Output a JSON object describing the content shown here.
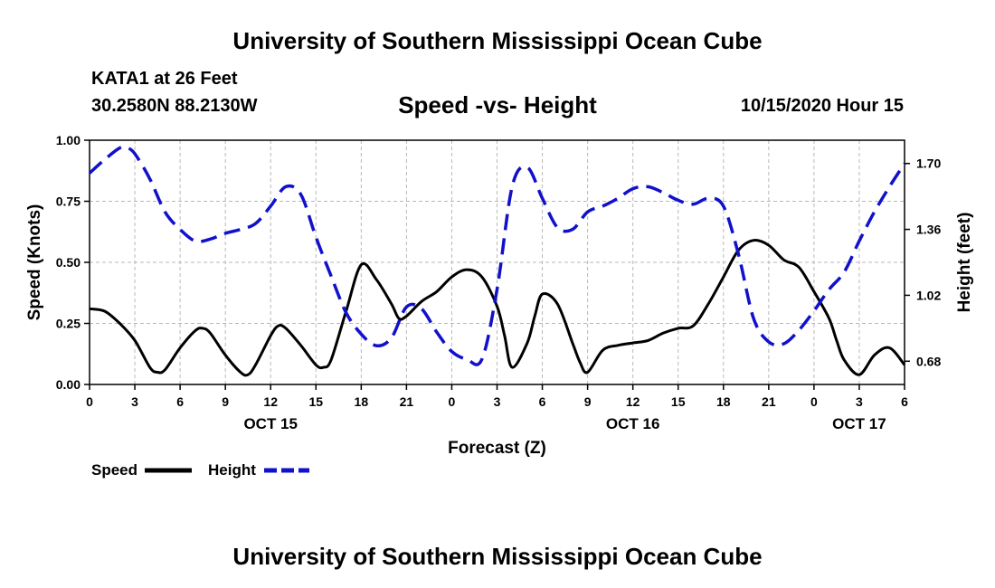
{
  "header": {
    "title": "University of Southern Mississippi Ocean Cube",
    "station": "KATA1 at 26 Feet",
    "coords": "30.2580N 88.2130W",
    "subtitle": "Speed -vs- Height",
    "datetime": "10/15/2020 Hour 15"
  },
  "footer": {
    "title": "University of Southern Mississippi Ocean Cube"
  },
  "chart_data": {
    "type": "line",
    "title": "Speed -vs- Height",
    "xlabel": "Forecast (Z)",
    "ylabel": "Speed (Knots)",
    "y2label": "Height (feet)",
    "xlim": [
      0,
      54
    ],
    "ylim": [
      0,
      1
    ],
    "y2lim": [
      0.56,
      1.82
    ],
    "grid": true,
    "x_ticks": [
      0,
      3,
      6,
      9,
      12,
      15,
      18,
      21,
      24,
      27,
      30,
      33,
      36,
      39,
      42,
      45,
      48,
      51,
      54
    ],
    "x_tick_labels": [
      "0",
      "3",
      "6",
      "9",
      "12",
      "15",
      "18",
      "21",
      "0",
      "3",
      "6",
      "9",
      "12",
      "15",
      "18",
      "21",
      "0",
      "3",
      "6"
    ],
    "day_labels": [
      {
        "x": 12,
        "label": "OCT 15"
      },
      {
        "x": 36,
        "label": "OCT 16"
      },
      {
        "x": 51,
        "label": "OCT 17"
      }
    ],
    "y_ticks": [
      0.0,
      0.25,
      0.5,
      0.75,
      1.0
    ],
    "y_tick_labels": [
      "0.00",
      "0.25",
      "0.50",
      "0.75",
      "1.00"
    ],
    "y2_ticks": [
      0.68,
      1.02,
      1.36,
      1.7
    ],
    "y2_tick_labels": [
      "0.68",
      "1.02",
      "1.36",
      "1.70"
    ],
    "legend": {
      "position": "bottom-left",
      "entries": [
        {
          "label": "Speed",
          "color": "#000000",
          "style": "solid"
        },
        {
          "label": "Height",
          "color": "#1111cc",
          "style": "dashed"
        }
      ]
    },
    "series": [
      {
        "name": "Speed",
        "axis": "left",
        "color": "#000000",
        "style": "solid",
        "x": [
          0,
          1,
          2,
          3,
          4,
          4.5,
          5,
          6,
          7,
          7.5,
          8,
          9,
          10,
          10.5,
          11,
          12,
          12.5,
          13,
          14,
          15,
          15.5,
          16,
          17,
          18,
          19,
          20,
          20.5,
          21,
          22,
          23,
          24,
          25,
          26,
          27,
          27.5,
          28,
          29,
          29.5,
          30,
          31,
          32,
          32.5,
          33,
          34,
          35,
          36,
          37,
          38,
          39,
          40,
          41,
          42,
          43,
          44,
          45,
          46,
          47,
          48,
          49,
          49.5,
          50,
          51,
          52,
          53,
          54
        ],
        "values": [
          0.31,
          0.3,
          0.25,
          0.18,
          0.07,
          0.05,
          0.06,
          0.15,
          0.22,
          0.23,
          0.21,
          0.12,
          0.05,
          0.04,
          0.08,
          0.2,
          0.24,
          0.23,
          0.16,
          0.08,
          0.07,
          0.1,
          0.3,
          0.49,
          0.43,
          0.33,
          0.27,
          0.28,
          0.34,
          0.38,
          0.44,
          0.47,
          0.44,
          0.32,
          0.2,
          0.07,
          0.17,
          0.28,
          0.37,
          0.33,
          0.17,
          0.09,
          0.05,
          0.14,
          0.16,
          0.17,
          0.18,
          0.21,
          0.23,
          0.24,
          0.33,
          0.44,
          0.55,
          0.59,
          0.57,
          0.51,
          0.48,
          0.38,
          0.27,
          0.18,
          0.1,
          0.04,
          0.12,
          0.15,
          0.08
        ]
      },
      {
        "name": "Height",
        "axis": "right",
        "color": "#1111cc",
        "style": "dashed",
        "x": [
          0,
          1,
          2,
          2.5,
          3,
          4,
          5,
          6,
          7,
          8,
          9,
          10,
          11,
          12,
          13,
          14,
          15,
          16,
          17,
          18,
          19,
          20,
          21,
          22,
          23,
          24,
          25,
          26,
          27,
          28,
          29,
          30,
          31,
          32,
          33,
          34,
          35,
          36,
          37,
          38,
          39,
          40,
          41,
          42,
          43,
          44,
          45,
          46,
          47,
          48,
          49,
          50,
          51,
          52,
          53,
          54
        ],
        "values": [
          1.65,
          1.72,
          1.78,
          1.78,
          1.75,
          1.62,
          1.45,
          1.36,
          1.3,
          1.31,
          1.34,
          1.36,
          1.39,
          1.48,
          1.58,
          1.54,
          1.32,
          1.12,
          0.93,
          0.82,
          0.76,
          0.8,
          0.96,
          0.95,
          0.83,
          0.73,
          0.69,
          0.69,
          1.05,
          1.58,
          1.68,
          1.52,
          1.37,
          1.36,
          1.45,
          1.48,
          1.52,
          1.57,
          1.58,
          1.55,
          1.51,
          1.49,
          1.52,
          1.48,
          1.23,
          0.9,
          0.78,
          0.77,
          0.84,
          0.94,
          1.05,
          1.14,
          1.3,
          1.45,
          1.58,
          1.7
        ]
      }
    ]
  }
}
